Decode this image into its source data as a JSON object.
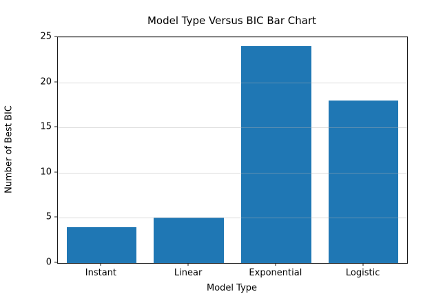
{
  "chart_data": {
    "type": "bar",
    "title": "Model Type Versus BIC Bar Chart",
    "xlabel": "Model Type",
    "ylabel": "Number of Best BIC",
    "categories": [
      "Instant",
      "Linear",
      "Exponential",
      "Logistic"
    ],
    "values": [
      4,
      5,
      24,
      18
    ],
    "ylim": [
      0,
      25
    ],
    "yticks": [
      0,
      5,
      10,
      15,
      20,
      25
    ],
    "grid": true,
    "legend": "none",
    "bar_color": "#1f77b4",
    "grid_color": "#b0b0b0",
    "axis_color": "#1a1a1a",
    "background_color": "#ffffff",
    "bar_width_fraction": 0.8
  }
}
